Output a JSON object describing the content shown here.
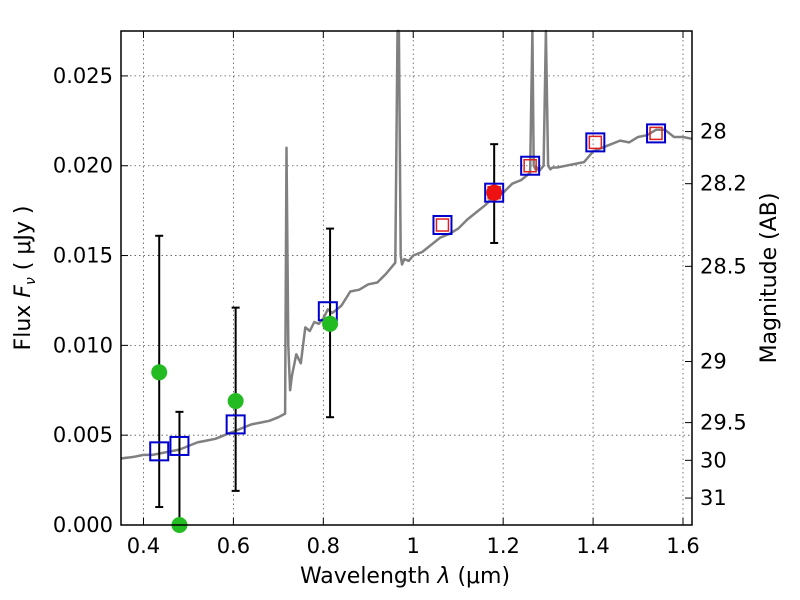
{
  "chart_data": {
    "type": "scatter",
    "xlabel": "Wavelength  λ (μm)",
    "ylabel": "Flux  F_ν  ( μJy )",
    "ylabel_parts": {
      "prefix": "Flux  ",
      "symbol": "F",
      "subscript": "ν",
      "suffix": "  ( μJy )"
    },
    "xlabel_parts": {
      "prefix": "Wavelength  ",
      "symbol": "λ",
      "suffix": " (μm)"
    },
    "right_ylabel": "Magnitude (AB)",
    "xlim": [
      0.35,
      1.62
    ],
    "ylim": [
      0.0,
      0.0275
    ],
    "grid": true,
    "x_ticks": [
      {
        "value": 0.4,
        "label": "0.4"
      },
      {
        "value": 0.6,
        "label": "0.6"
      },
      {
        "value": 0.8,
        "label": "0.8"
      },
      {
        "value": 1.0,
        "label": "1"
      },
      {
        "value": 1.2,
        "label": "1.2"
      },
      {
        "value": 1.4,
        "label": "1.4"
      },
      {
        "value": 1.6,
        "label": "1.6"
      }
    ],
    "y_ticks": [
      {
        "value": 0.0,
        "label": "0.000"
      },
      {
        "value": 0.005,
        "label": "0.005"
      },
      {
        "value": 0.01,
        "label": "0.010"
      },
      {
        "value": 0.015,
        "label": "0.015"
      },
      {
        "value": 0.02,
        "label": "0.020"
      },
      {
        "value": 0.025,
        "label": "0.025"
      }
    ],
    "right_ticks": [
      {
        "flux": 0.0219,
        "label": "28"
      },
      {
        "flux": 0.019,
        "label": "28.2"
      },
      {
        "flux": 0.0144,
        "label": "28.5"
      },
      {
        "flux": 0.0091,
        "label": "29"
      },
      {
        "flux": 0.0057,
        "label": "29.5"
      },
      {
        "flux": 0.0036,
        "label": "30"
      },
      {
        "flux": 0.0015,
        "label": "31"
      }
    ],
    "series": [
      {
        "name": "model spectrum",
        "kind": "line",
        "color": "#808080",
        "x": [
          0.35,
          0.38,
          0.4,
          0.42,
          0.44,
          0.46,
          0.48,
          0.5,
          0.52,
          0.54,
          0.56,
          0.58,
          0.6,
          0.62,
          0.64,
          0.66,
          0.68,
          0.7,
          0.715,
          0.718,
          0.722,
          0.726,
          0.73,
          0.74,
          0.75,
          0.76,
          0.77,
          0.78,
          0.79,
          0.8,
          0.81,
          0.82,
          0.84,
          0.86,
          0.88,
          0.9,
          0.92,
          0.94,
          0.96,
          0.965,
          0.968,
          0.972,
          0.975,
          0.98,
          0.99,
          1.0,
          1.02,
          1.04,
          1.06,
          1.08,
          1.1,
          1.12,
          1.14,
          1.16,
          1.18,
          1.2,
          1.22,
          1.24,
          1.26,
          1.265,
          1.268,
          1.272,
          1.275,
          1.28,
          1.29,
          1.295,
          1.3,
          1.305,
          1.31,
          1.32,
          1.34,
          1.36,
          1.38,
          1.4,
          1.42,
          1.44,
          1.46,
          1.48,
          1.5,
          1.52,
          1.54,
          1.56,
          1.58,
          1.6,
          1.62
        ],
        "y": [
          0.0037,
          0.0038,
          0.0039,
          0.0039,
          0.004,
          0.0041,
          0.0042,
          0.0044,
          0.0046,
          0.0047,
          0.0048,
          0.005,
          0.0052,
          0.0054,
          0.0056,
          0.0057,
          0.0058,
          0.006,
          0.0062,
          0.021,
          0.01,
          0.0075,
          0.0083,
          0.0095,
          0.009,
          0.011,
          0.0108,
          0.0113,
          0.0112,
          0.0115,
          0.012,
          0.0118,
          0.0122,
          0.013,
          0.0131,
          0.0134,
          0.0135,
          0.014,
          0.0146,
          0.0275,
          0.0275,
          0.015,
          0.0145,
          0.0148,
          0.0147,
          0.015,
          0.0152,
          0.0156,
          0.016,
          0.0162,
          0.0165,
          0.017,
          0.0174,
          0.0178,
          0.0183,
          0.0185,
          0.019,
          0.0192,
          0.0196,
          0.0275,
          0.02,
          0.0198,
          0.0199,
          0.0197,
          0.02,
          0.0275,
          0.02,
          0.0198,
          0.0199,
          0.0199,
          0.02,
          0.0201,
          0.0202,
          0.0208,
          0.021,
          0.0212,
          0.0214,
          0.0213,
          0.0216,
          0.0217,
          0.022,
          0.022,
          0.0216,
          0.0216,
          0.0215
        ]
      },
      {
        "name": "model photometry (blue squares)",
        "kind": "marker",
        "marker": "square",
        "color": "#0000cc",
        "x": [
          0.435,
          0.48,
          0.605,
          0.81
        ],
        "y": [
          0.0041,
          0.0044,
          0.0056,
          0.0119
        ]
      },
      {
        "name": "model photometry (red-inner squares)",
        "kind": "marker",
        "marker": "square-red-inner",
        "color": "#0000cc",
        "inner_color": "#e02020",
        "x": [
          1.065,
          1.18,
          1.26,
          1.405,
          1.54
        ],
        "y": [
          0.0167,
          0.0185,
          0.02,
          0.0213,
          0.0218
        ]
      },
      {
        "name": "observed (green)",
        "kind": "errorbar",
        "color": "#22bb22",
        "x": [
          0.435,
          0.48,
          0.605,
          0.815
        ],
        "y": [
          0.0085,
          0.0,
          0.0069,
          0.0112
        ],
        "yerr_low": [
          0.001,
          0.0,
          0.0019,
          0.006
        ],
        "yerr_high": [
          0.0161,
          0.0063,
          0.0121,
          0.0165
        ]
      },
      {
        "name": "observed (red)",
        "kind": "errorbar",
        "color": "#ee1111",
        "x": [
          1.18
        ],
        "y": [
          0.0185
        ],
        "yerr_low": [
          0.0157
        ],
        "yerr_high": [
          0.0212
        ]
      }
    ]
  }
}
